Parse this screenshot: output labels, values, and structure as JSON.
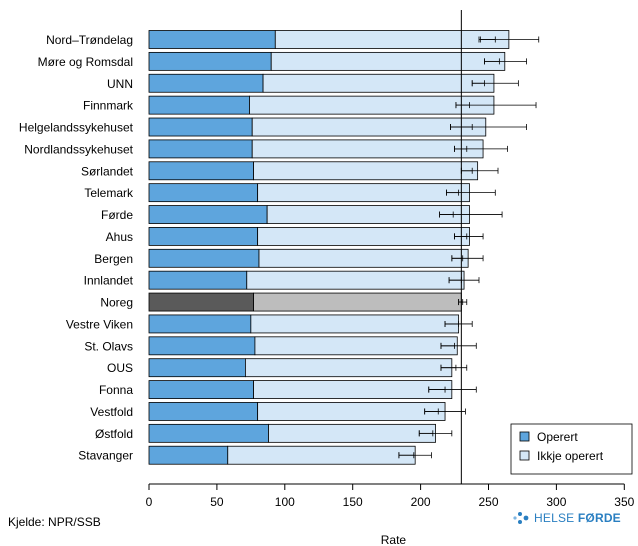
{
  "chart_data": {
    "type": "bar",
    "stacked": true,
    "orientation": "horizontal",
    "categories": [
      "Nord–Trøndelag",
      "Møre og Romsdal",
      "UNN",
      "Finnmark",
      "Helgelandssykehuset",
      "Nordlandssykehuset",
      "Sørlandet",
      "Telemark",
      "Førde",
      "Ahus",
      "Bergen",
      "Innlandet",
      "Noreg",
      "Vestre Viken",
      "St. Olavs",
      "OUS",
      "Fonna",
      "Vestfold",
      "Østfold",
      "Stavanger"
    ],
    "series": [
      {
        "name": "Operert",
        "values": [
          93,
          90,
          84,
          74,
          76,
          76,
          77,
          80,
          87,
          80,
          81,
          72,
          77,
          75,
          78,
          71,
          77,
          80,
          88,
          58
        ]
      },
      {
        "name": "Ikkje operert",
        "values": [
          172,
          172,
          170,
          180,
          172,
          170,
          165,
          156,
          149,
          156,
          154,
          160,
          153,
          153,
          149,
          152,
          146,
          138,
          123,
          138
        ]
      }
    ],
    "totals": [
      265,
      262,
      254,
      254,
      248,
      246,
      242,
      236,
      236,
      236,
      235,
      232,
      230,
      228,
      227,
      223,
      223,
      218,
      211,
      196
    ],
    "error_bars": {
      "operert": [
        [
          244,
          255
        ],
        [
          247,
          258
        ],
        [
          238,
          247
        ],
        [
          226,
          236
        ],
        [
          222,
          238
        ],
        [
          225,
          234
        ],
        [
          230,
          238
        ],
        [
          219,
          228
        ],
        [
          214,
          224
        ],
        [
          225,
          234
        ],
        [
          223,
          231
        ],
        [
          221,
          230
        ],
        [
          228,
          231
        ],
        [
          218,
          228
        ],
        [
          215,
          225
        ],
        [
          215,
          226
        ],
        [
          206,
          218
        ],
        [
          203,
          213
        ],
        [
          199,
          209
        ],
        [
          184,
          195
        ]
      ],
      "total": [
        [
          243,
          287
        ],
        [
          247,
          278
        ],
        [
          238,
          272
        ],
        [
          226,
          285
        ],
        [
          222,
          278
        ],
        [
          225,
          264
        ],
        [
          230,
          257
        ],
        [
          219,
          255
        ],
        [
          214,
          260
        ],
        [
          225,
          246
        ],
        [
          223,
          246
        ],
        [
          221,
          243
        ],
        [
          228,
          234
        ],
        [
          218,
          238
        ],
        [
          215,
          241
        ],
        [
          215,
          234
        ],
        [
          206,
          241
        ],
        [
          203,
          233
        ],
        [
          199,
          223
        ],
        [
          184,
          208
        ]
      ]
    },
    "reference_line": 230,
    "highlight_category": "Noreg",
    "xlim": [
      0,
      360
    ],
    "xticks": [
      0,
      50,
      100,
      150,
      200,
      250,
      300,
      350
    ],
    "xlabel": "Rate",
    "legend_position": "bottom-right",
    "colors": {
      "operert": "#5ea5dd",
      "ikkje_operert": "#d4e7f7",
      "operert_highlight": "#5a5a5a",
      "ikkje_operert_highlight": "#bdbdbd"
    }
  },
  "footer": {
    "source": "Kjelde: NPR/SSB",
    "logo_text_normal": "HELSE ",
    "logo_text_bold": "FØRDE"
  }
}
